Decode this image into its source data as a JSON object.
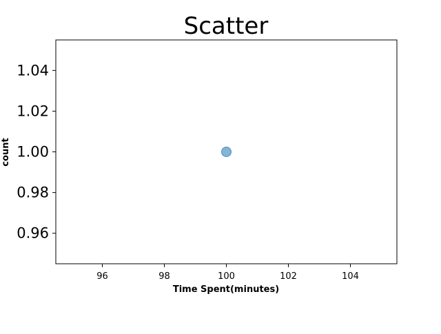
{
  "chart_data": {
    "type": "scatter",
    "title": "Scatter",
    "xlabel": "Time Spent(minutes)",
    "ylabel": "count",
    "xlim": [
      94.5,
      105.5
    ],
    "ylim": [
      0.945,
      1.055
    ],
    "xticks": [
      96,
      98,
      100,
      102,
      104
    ],
    "xtick_labels": [
      "96",
      "98",
      "100",
      "102",
      "104"
    ],
    "yticks": [
      0.96,
      0.98,
      1.0,
      1.02,
      1.04
    ],
    "ytick_labels": [
      "0.96",
      "0.98",
      "1.00",
      "1.02",
      "1.04"
    ],
    "grid": false,
    "series": [
      {
        "x": [
          100
        ],
        "y": [
          1.0
        ],
        "color": "#1f77b4",
        "alpha": 0.55
      }
    ]
  }
}
